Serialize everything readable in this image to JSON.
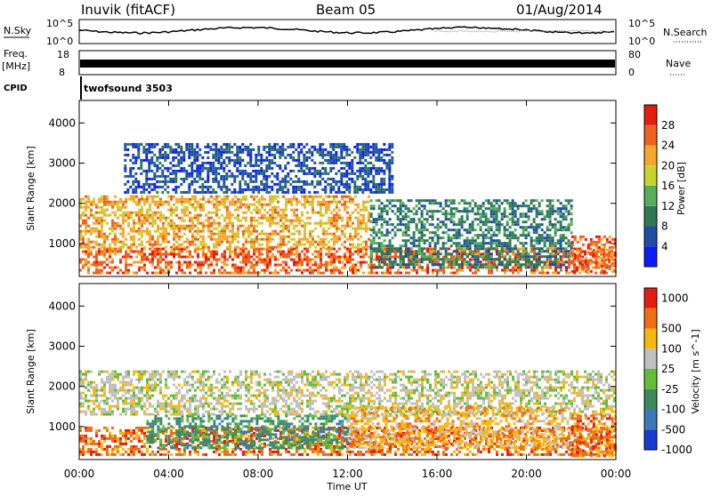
{
  "header": {
    "station": "Inuvik (fitACF)",
    "beam": "Beam 05",
    "date": "01/Aug/2014"
  },
  "top_panels": {
    "nsky_label": "N.Sky",
    "nsky_ticks": [
      "10^5",
      "10^0"
    ],
    "nsearch_label": "N.Search",
    "nsearch_ticks": [
      "10^5",
      "10^0"
    ],
    "freq_label": "Freq.",
    "freq_unit": "[MHz]",
    "freq_ticks": [
      "18",
      "8"
    ],
    "nave_label": "Nave",
    "nave_ticks": [
      "80",
      "0"
    ],
    "cpid_label": "CPID",
    "cpid_value": "twofsound 3503"
  },
  "chart_data": [
    {
      "type": "heatmap",
      "name": "power",
      "ylabel": "Slant Range [km]",
      "ylim": [
        180,
        4560
      ],
      "yticks": [
        1000,
        2000,
        3000,
        4000
      ],
      "xlabel": "Time UT",
      "xticks": [
        "00:00",
        "04:00",
        "08:00",
        "12:00",
        "16:00",
        "20:00",
        "00:00"
      ],
      "colorbar": {
        "label": "Power [dB]",
        "ticks": [
          "4",
          "8",
          "12",
          "16",
          "20",
          "24",
          "28"
        ],
        "colors": [
          "#0a1cff",
          "#1d4fa3",
          "#2f7a55",
          "#58ad5c",
          "#c7d52c",
          "#f6a72c",
          "#f06020",
          "#e81b0f"
        ]
      },
      "bands": [
        {
          "t_start": 0,
          "t_end": 24,
          "range_low": 300,
          "range_high": 900,
          "level": 6
        },
        {
          "t_start": 0,
          "t_end": 13,
          "range_low": 900,
          "range_high": 2200,
          "level": 5
        },
        {
          "t_start": 13,
          "t_end": 22,
          "range_low": 400,
          "range_high": 2100,
          "level": 2
        },
        {
          "t_start": 2,
          "t_end": 14,
          "range_low": 2300,
          "range_high": 3500,
          "level": 1
        },
        {
          "t_start": 22,
          "t_end": 24,
          "range_low": 300,
          "range_high": 1200,
          "level": 6
        }
      ]
    },
    {
      "type": "heatmap",
      "name": "velocity",
      "ylabel": "Slant Range [km]",
      "ylim": [
        180,
        4560
      ],
      "yticks": [
        1000,
        2000,
        3000,
        4000
      ],
      "xlabel": "Time UT",
      "xticks": [
        "00:00",
        "04:00",
        "08:00",
        "12:00",
        "16:00",
        "20:00",
        "00:00"
      ],
      "colorbar": {
        "label": "Velocity [m s^-1]",
        "ticks": [
          "1000",
          "500",
          "100",
          "25",
          "-25",
          "-100",
          "-500",
          "-1000"
        ],
        "colors": [
          "#1a3bd3",
          "#3a7ab8",
          "#3c8a5a",
          "#62bd37",
          "#c0c0c0",
          "#f7b80e",
          "#ef6e14",
          "#e81b0f"
        ]
      },
      "bands": [
        {
          "t_start": 0,
          "t_end": 24,
          "range_low": 300,
          "range_high": 1000,
          "level": 6
        },
        {
          "t_start": 3,
          "t_end": 12,
          "range_low": 500,
          "range_high": 1300,
          "level": 2
        },
        {
          "t_start": 0,
          "t_end": 24,
          "range_low": 1300,
          "range_high": 2400,
          "level": 4
        },
        {
          "t_start": 12,
          "t_end": 22,
          "range_low": 500,
          "range_high": 1500,
          "level": 5
        },
        {
          "t_start": 22,
          "t_end": 24,
          "range_low": 300,
          "range_high": 1300,
          "level": 6
        }
      ]
    }
  ]
}
